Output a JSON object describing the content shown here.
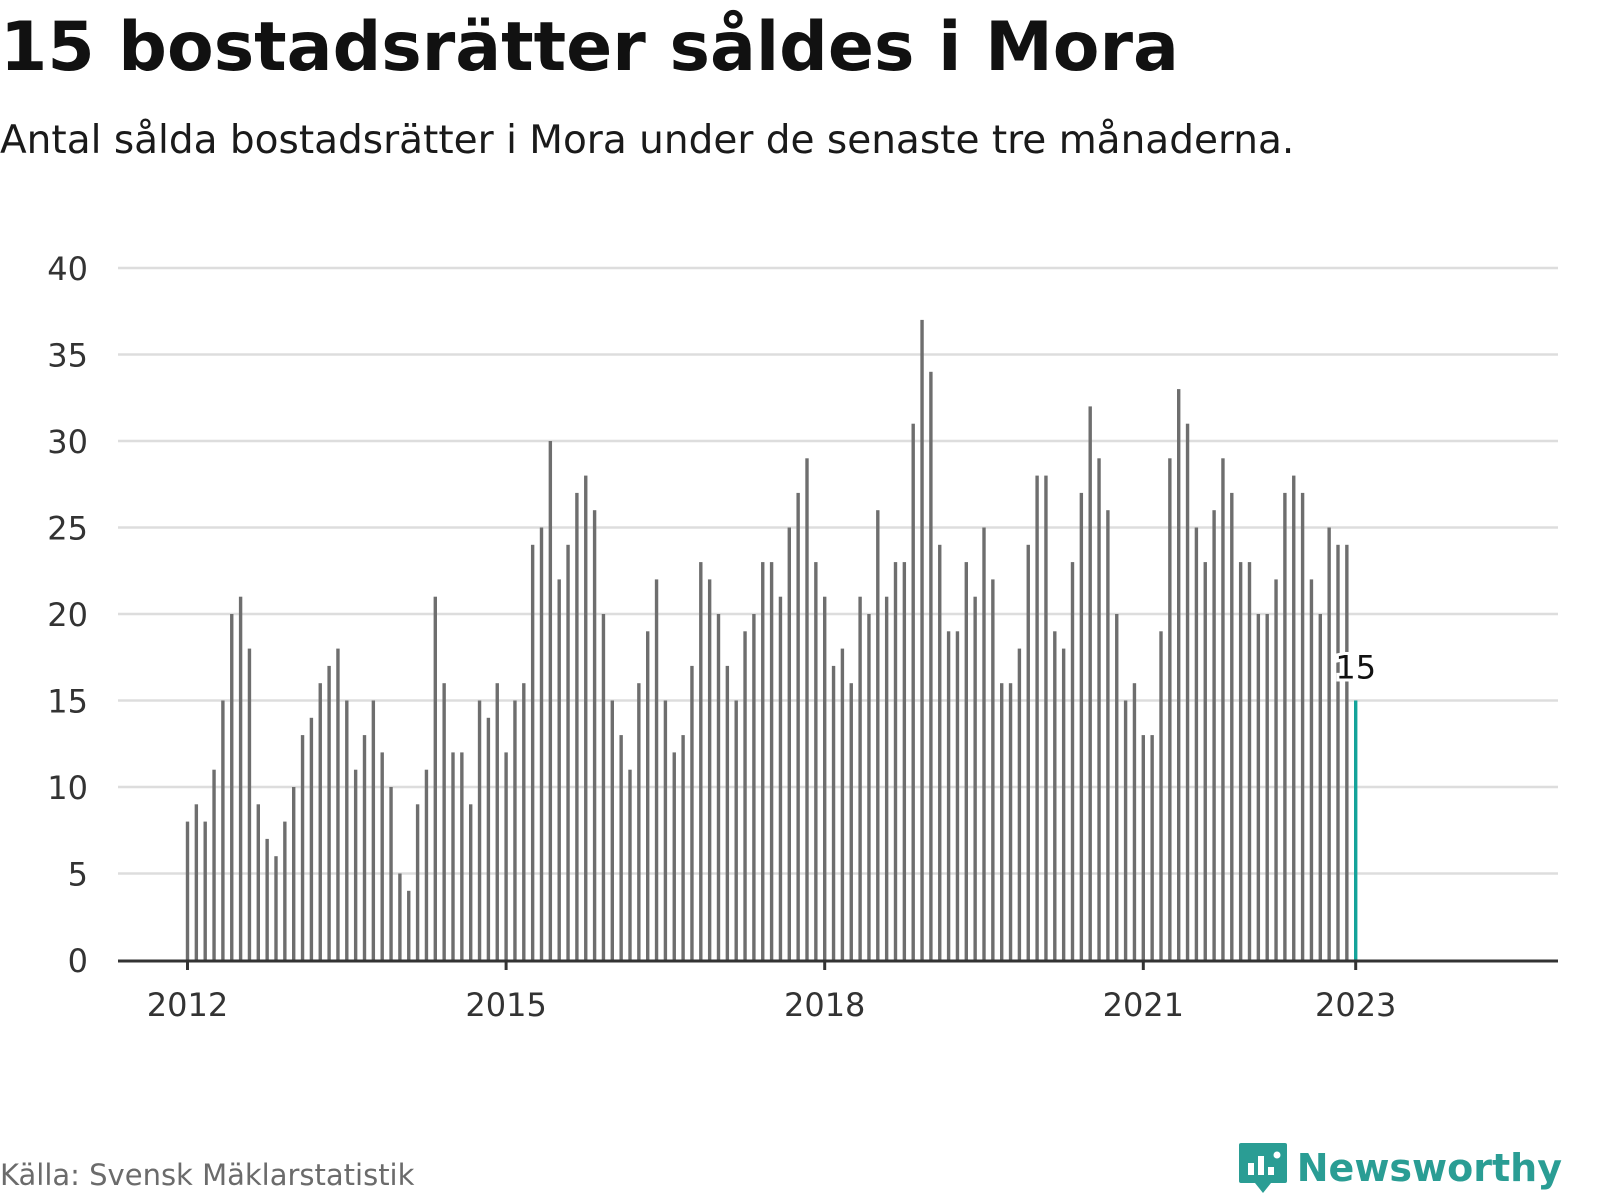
{
  "title": "15 bostadsrätter såldes i Mora",
  "subtitle": "Antal sålda bostadsrätter i Mora under de senaste tre månaderna.",
  "source": "Källa: Svensk Mäklarstatistik",
  "brand": {
    "name": "Newsworthy",
    "icon": "bar-chart-logo-icon"
  },
  "colors": {
    "bar": "#6e6e6e",
    "highlight": "#14a39a",
    "grid": "#dddddd",
    "axis": "#333333",
    "brand": "#2a9d94"
  },
  "chart_data": {
    "type": "bar",
    "xlabel": "",
    "ylabel": "",
    "ylim": [
      0,
      40
    ],
    "yticks": [
      0,
      5,
      10,
      15,
      20,
      25,
      30,
      35,
      40
    ],
    "grid": true,
    "x_start": "2012-01",
    "xticks": [
      {
        "label": "2012",
        "month": "2012-01"
      },
      {
        "label": "2015",
        "month": "2015-01"
      },
      {
        "label": "2018",
        "month": "2018-01"
      },
      {
        "label": "2021",
        "month": "2021-01"
      },
      {
        "label": "2023",
        "month": "2023-01"
      }
    ],
    "values": [
      8,
      9,
      8,
      11,
      15,
      20,
      21,
      18,
      9,
      7,
      6,
      8,
      10,
      13,
      14,
      16,
      17,
      18,
      15,
      11,
      13,
      15,
      12,
      10,
      5,
      4,
      9,
      11,
      21,
      16,
      12,
      12,
      9,
      15,
      14,
      16,
      12,
      15,
      16,
      24,
      25,
      30,
      22,
      24,
      27,
      28,
      26,
      20,
      15,
      13,
      11,
      16,
      19,
      22,
      15,
      12,
      13,
      17,
      23,
      22,
      20,
      17,
      15,
      19,
      20,
      23,
      23,
      21,
      25,
      27,
      29,
      23,
      21,
      17,
      18,
      16,
      21,
      20,
      26,
      21,
      23,
      23,
      31,
      37,
      34,
      24,
      19,
      19,
      23,
      21,
      25,
      22,
      16,
      16,
      18,
      24,
      28,
      28,
      19,
      18,
      23,
      27,
      32,
      29,
      26,
      20,
      15,
      16,
      13,
      13,
      19,
      29,
      33,
      31,
      25,
      23,
      26,
      29,
      27,
      23,
      23,
      20,
      20,
      22,
      27,
      28,
      27,
      22,
      20,
      25,
      24,
      24,
      15
    ],
    "highlight": {
      "month": "2023-01",
      "value": 15,
      "label": "15"
    }
  }
}
